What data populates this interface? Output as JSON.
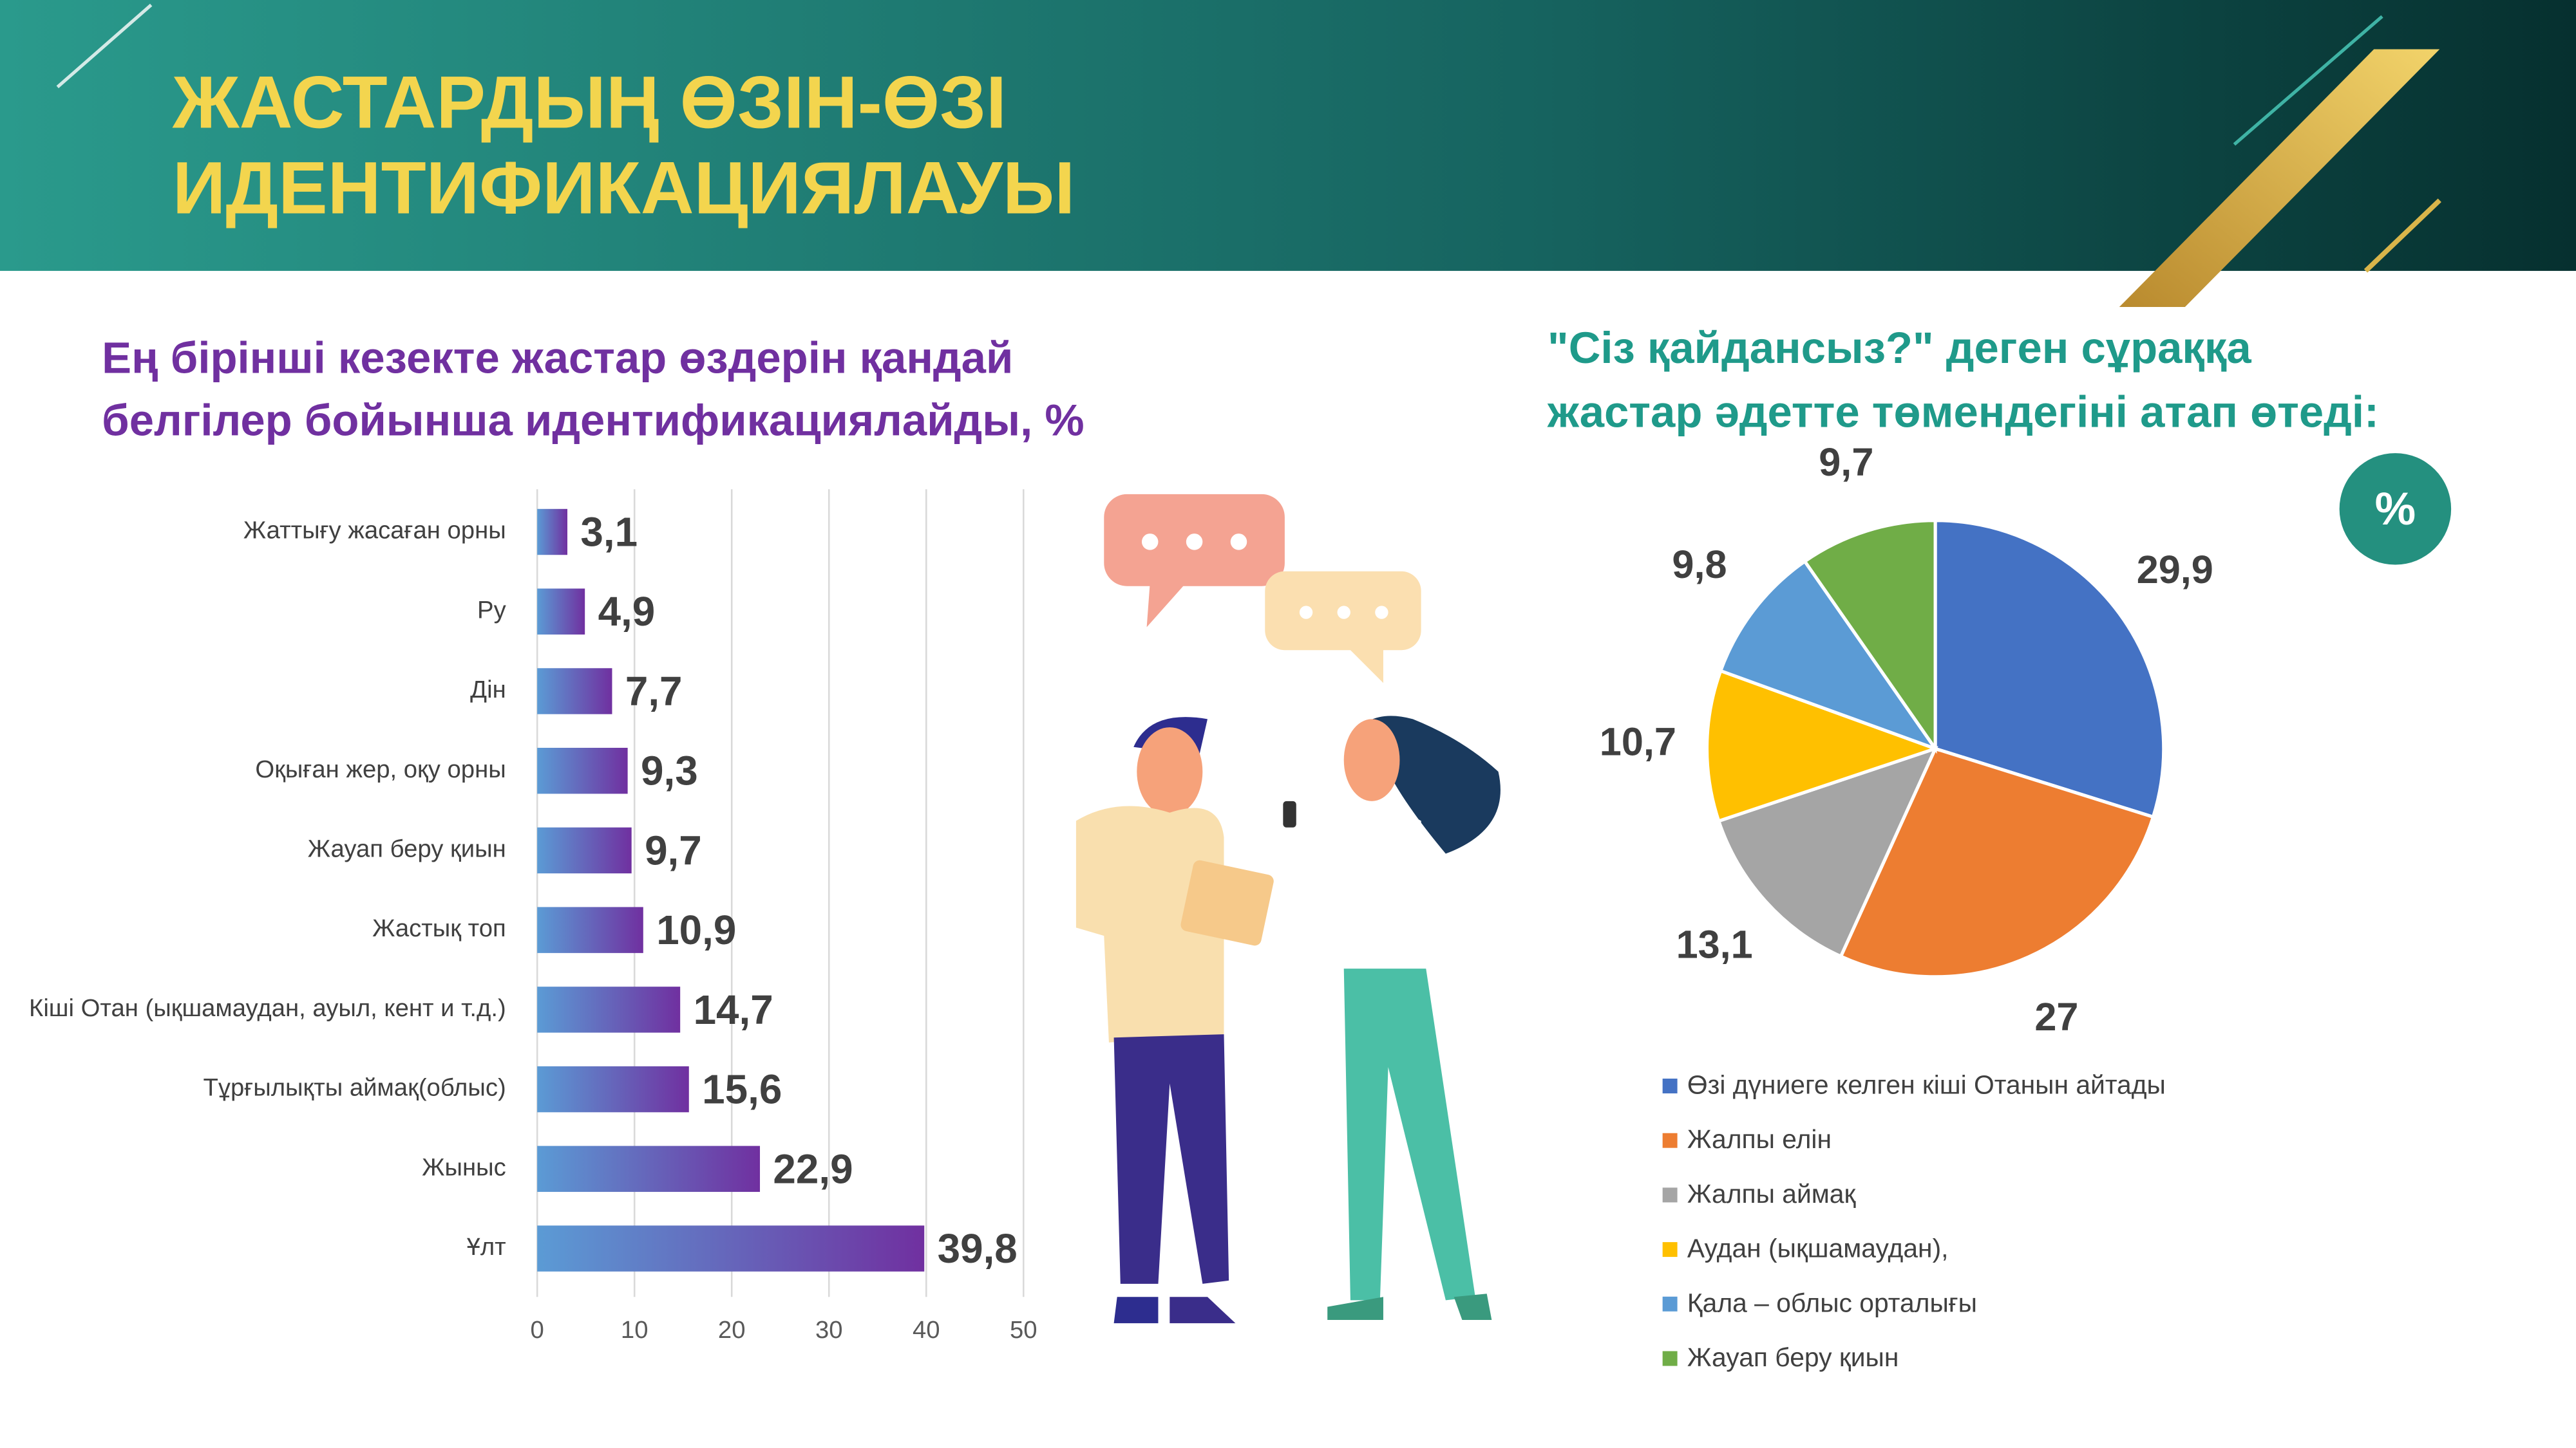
{
  "header": {
    "title": [
      "ЖАСТАРДЫҢ ӨЗІН-ӨЗІ",
      "ИДЕНТИФИКАЦИЯЛАУЫ"
    ]
  },
  "chart_data": [
    {
      "type": "hbar",
      "title": [
        "Ең бірінші кезекте  жастар өздерін қандай",
        "белгілер бойынша идентификациялайды, %"
      ],
      "categories": [
        "Жаттығу жасаған орны",
        "Ру",
        "Дін",
        "Оқыған жер, оқу орны",
        "Жауап беру қиын",
        "Жастық топ",
        "Кіші Отан (ықшамаудан, ауыл, кент и т.д.)",
        "Тұрғылықты аймақ(облыс)",
        "Жыныс",
        "Ұлт"
      ],
      "values": [
        3.1,
        4.9,
        7.7,
        9.3,
        9.7,
        10.9,
        14.7,
        15.6,
        22.9,
        39.8
      ],
      "value_labels": [
        "3,1",
        "4,9",
        "7,7",
        "9,3",
        "9,7",
        "10,9",
        "14,7",
        "15,6",
        "22,9",
        "39,8"
      ],
      "colors": [
        "#5b9bd5",
        "#7030a0"
      ],
      "xlim": [
        0,
        50
      ],
      "xticks": [
        0,
        10,
        20,
        30,
        40,
        50
      ],
      "grid": true
    },
    {
      "type": "pie",
      "title": [
        "\"Сіз қайдансыз?\" деген сұраққа",
        "жастар әдетте төмендегіні атап өтеді:"
      ],
      "badge": "%",
      "categories": [
        "Өзі дүниеге келген кіші Отанын айтады",
        "Жалпы елін",
        "Жалпы аймақ",
        "Аудан (ықшамаудан),",
        "Қала – облыс орталығы",
        "Жауап беру қиын"
      ],
      "values": [
        29.9,
        27,
        13.1,
        10.7,
        9.8,
        9.7
      ],
      "value_labels": [
        "29,9",
        "27",
        "13,1",
        "10,7",
        "9,8",
        "9,7"
      ],
      "colors": [
        "#4472c4",
        "#ed7d31",
        "#a5a5a5",
        "#ffc000",
        "#5b9bd5",
        "#70ad47"
      ]
    }
  ]
}
